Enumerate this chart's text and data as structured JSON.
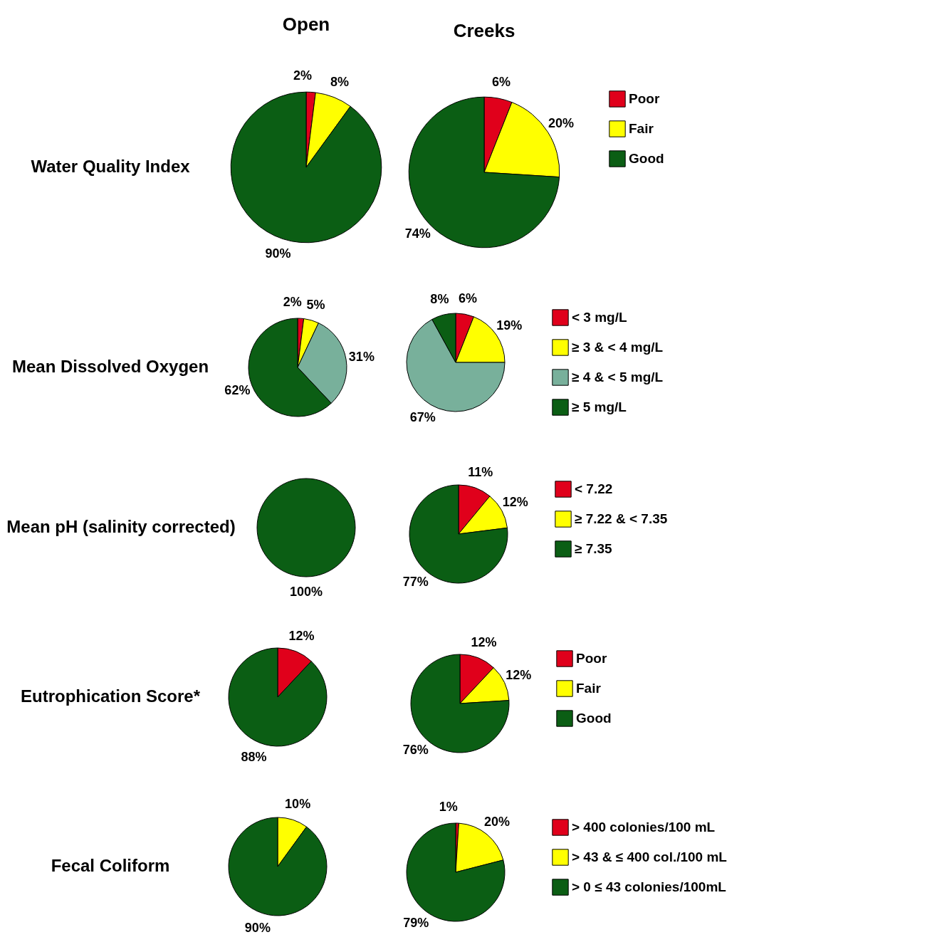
{
  "chart_data": [
    {
      "type": "pie",
      "title": "Open",
      "ylabel": "Water Quality Index",
      "categories": [
        null,
        null,
        null
      ],
      "values": [
        2,
        8,
        90
      ],
      "colors": [
        "#e0001b",
        "#ffff00",
        "#0b5e14"
      ],
      "value_labels": [
        "2%",
        "8%",
        "90%"
      ]
    },
    {
      "type": "pie",
      "title": "Creeks",
      "categories": [
        "Poor",
        "Fair",
        "Good"
      ],
      "values": [
        6,
        20,
        74
      ],
      "colors": [
        "#e0001b",
        "#ffff00",
        "#0b5e14"
      ],
      "value_labels": [
        "6%",
        "20%",
        "74%"
      ],
      "legend": "right"
    },
    {
      "type": "pie",
      "ylabel": "Mean Dissolved Oxygen",
      "categories": [
        null,
        null,
        null,
        null
      ],
      "values": [
        2,
        5,
        31,
        62
      ],
      "colors": [
        "#e0001b",
        "#ffff00",
        "#78b09b",
        "#0b5e14"
      ],
      "value_labels": [
        "2%",
        "5%",
        "31%",
        "62%"
      ]
    },
    {
      "type": "pie",
      "categories": [
        "< 3 mg/L",
        "≥ 3 & < 4 mg/L",
        "≥ 4 & < 5 mg/L",
        "≥ 5 mg/L"
      ],
      "values": [
        6,
        19,
        67,
        8
      ],
      "colors": [
        "#e0001b",
        "#ffff00",
        "#78b09b",
        "#0b5e14"
      ],
      "value_labels": [
        "6%",
        "19%",
        "67%",
        "8%"
      ],
      "legend": "right"
    },
    {
      "type": "pie",
      "ylabel": "Mean  pH (salinity corrected)",
      "categories": [
        null,
        null,
        null
      ],
      "values": [
        0,
        0,
        100
      ],
      "colors": [
        "#e0001b",
        "#ffff00",
        "#0b5e14"
      ],
      "value_labels": [
        null,
        null,
        "100%"
      ]
    },
    {
      "type": "pie",
      "categories": [
        "< 7.22",
        "≥ 7.22 & < 7.35",
        "≥ 7.35"
      ],
      "values": [
        11,
        12,
        77
      ],
      "colors": [
        "#e0001b",
        "#ffff00",
        "#0b5e14"
      ],
      "value_labels": [
        "11%",
        "12%",
        "77%"
      ],
      "legend": "right"
    },
    {
      "type": "pie",
      "ylabel": "Eutrophication Score*",
      "categories": [
        null,
        null,
        null
      ],
      "values": [
        12,
        0,
        88
      ],
      "colors": [
        "#e0001b",
        "#ffff00",
        "#0b5e14"
      ],
      "value_labels": [
        "12%",
        null,
        "88%"
      ]
    },
    {
      "type": "pie",
      "categories": [
        "Poor",
        "Fair",
        "Good"
      ],
      "values": [
        12,
        12,
        76
      ],
      "colors": [
        "#e0001b",
        "#ffff00",
        "#0b5e14"
      ],
      "value_labels": [
        "12%",
        "12%",
        "76%"
      ],
      "legend": "right"
    },
    {
      "type": "pie",
      "ylabel": "Fecal Coliform",
      "categories": [
        null,
        null,
        null
      ],
      "values": [
        0,
        10,
        90
      ],
      "colors": [
        "#e0001b",
        "#ffff00",
        "#0b5e14"
      ],
      "value_labels": [
        null,
        "10%",
        "90%"
      ]
    },
    {
      "type": "pie",
      "categories": [
        "> 400 colonies/100 mL",
        "> 43  & ≤ 400 col./100 mL",
        "> 0 ≤ 43 colonies/100mL"
      ],
      "values": [
        1,
        20,
        79
      ],
      "colors": [
        "#e0001b",
        "#ffff00",
        "#0b5e14"
      ],
      "value_labels": [
        "1%",
        "20%",
        "79%"
      ],
      "legend": "right"
    }
  ]
}
